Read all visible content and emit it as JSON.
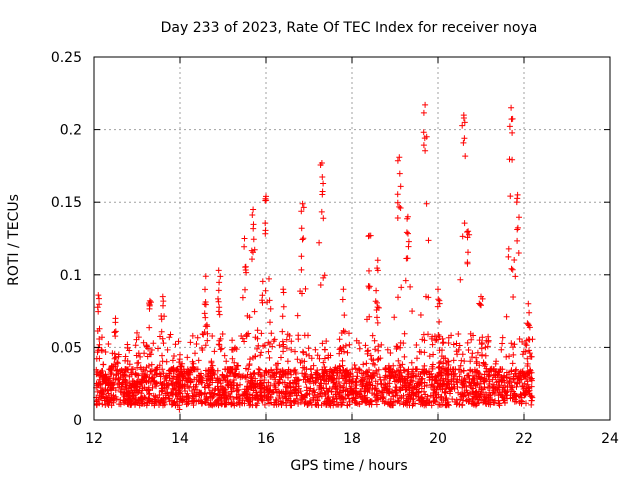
{
  "chart_data": {
    "type": "scatter",
    "title": "Day 233 of 2023, Rate Of TEC Index for receiver noya",
    "xlabel": "GPS time / hours",
    "ylabel": "ROTI / TECUs",
    "xlim": [
      12,
      24
    ],
    "ylim": [
      0,
      0.25
    ],
    "xticks": [
      "12",
      "14",
      "16",
      "18",
      "20",
      "22",
      "24"
    ],
    "yticks": [
      "0",
      "0.05",
      "0.1",
      "0.15",
      "0.2",
      "0.25"
    ],
    "grid": true,
    "marker": "+",
    "color": "#ff0000",
    "series": [
      {
        "x_range": [
          12.05,
          22.2
        ],
        "baseline_range": [
          0.01,
          0.035
        ],
        "envelope": [
          [
            12.1,
            0.086
          ],
          [
            12.5,
            0.07
          ],
          [
            13.0,
            0.06
          ],
          [
            13.3,
            0.082
          ],
          [
            13.6,
            0.085
          ],
          [
            14.0,
            0.045
          ],
          [
            14.6,
            0.099
          ],
          [
            14.9,
            0.103
          ],
          [
            15.5,
            0.125
          ],
          [
            15.7,
            0.145
          ],
          [
            16.0,
            0.154
          ],
          [
            16.4,
            0.09
          ],
          [
            16.85,
            0.149
          ],
          [
            17.3,
            0.177
          ],
          [
            17.8,
            0.09
          ],
          [
            18.4,
            0.127
          ],
          [
            18.6,
            0.11
          ],
          [
            19.1,
            0.181
          ],
          [
            19.3,
            0.14
          ],
          [
            19.7,
            0.217
          ],
          [
            20.0,
            0.09
          ],
          [
            20.6,
            0.21
          ],
          [
            20.7,
            0.13
          ],
          [
            21.0,
            0.085
          ],
          [
            21.7,
            0.215
          ],
          [
            21.85,
            0.155
          ],
          [
            22.1,
            0.08
          ]
        ]
      }
    ]
  }
}
